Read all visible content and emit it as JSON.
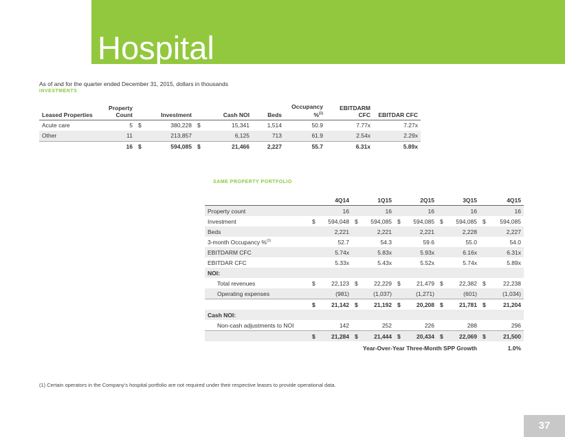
{
  "header": {
    "title": "Hospital"
  },
  "subtitle": "As of and for the quarter ended December 31, 2015, dollars in thousands",
  "investments": {
    "heading": "INVESTMENTS",
    "columns": [
      "Leased Properties",
      "Property Count",
      "Investment",
      "Cash NOI",
      "Beds",
      {
        "text": "Occupancy %",
        "note": "(1)"
      },
      "EBITDARM CFC",
      "EBITDAR CFC"
    ],
    "rows": [
      {
        "label": "Acute care",
        "values": [
          "5",
          {
            "prefix": "$",
            "text": "380,228"
          },
          {
            "prefix": "$",
            "text": "15,341"
          },
          "1,514",
          "50.9",
          "7.77x",
          "7.27x"
        ]
      },
      {
        "label": "Other",
        "values": [
          "11",
          "213,857",
          "6,125",
          "713",
          "61.9",
          "2.54x",
          "2.29x"
        ]
      },
      {
        "label": null,
        "style": "total",
        "values": [
          "16",
          {
            "prefix": "$",
            "text": "594,085"
          },
          {
            "prefix": "$",
            "text": "21,466"
          },
          "2,227",
          "55.7",
          "6.31x",
          "5.89x"
        ]
      }
    ]
  },
  "spp": {
    "heading": "SAME PROPERTY PORTFOLIO",
    "columns": [
      "4Q14",
      "1Q15",
      "2Q15",
      "3Q15",
      "4Q15"
    ],
    "rows": [
      {
        "label": "Property count",
        "values": [
          "16",
          "16",
          "16",
          "16",
          "16"
        ]
      },
      {
        "label": "Investment",
        "values": [
          {
            "prefix": "$",
            "text": "594,048"
          },
          {
            "prefix": "$",
            "text": "594,085"
          },
          {
            "prefix": "$",
            "text": "594,085"
          },
          {
            "prefix": "$",
            "text": "594,085"
          },
          {
            "prefix": "$",
            "text": "594,085"
          }
        ]
      },
      {
        "label": "Beds",
        "values": [
          "2,221",
          "2,221",
          "2,221",
          "2,228",
          "2,227"
        ]
      },
      {
        "label": "3-month Occupancy %",
        "note": "(1)",
        "values": [
          "52.7",
          "54.3",
          "59.6",
          "55.0",
          "54.0"
        ]
      },
      {
        "label": "EBITDARM CFC",
        "values": [
          "5.74x",
          "5.83x",
          "5.93x",
          "6.16x",
          "6.31x"
        ]
      },
      {
        "label": "EBITDAR CFC",
        "values": [
          "5.33x",
          "5.43x",
          "5.52x",
          "5.74x",
          "5.89x"
        ]
      },
      {
        "label": "NOI:",
        "style": "section",
        "values": []
      },
      {
        "label": "Total revenues",
        "style": "indent",
        "values": [
          {
            "prefix": "$",
            "text": "22,123"
          },
          {
            "prefix": "$",
            "text": "22,229"
          },
          {
            "prefix": "$",
            "text": "21,479"
          },
          {
            "prefix": "$",
            "text": "22,382"
          },
          {
            "prefix": "$",
            "text": "22,238"
          }
        ]
      },
      {
        "label": "Operating expenses",
        "style": "indent",
        "values": [
          "(981)",
          "(1,037)",
          "(1,271)",
          "(601)",
          "(1,034)"
        ]
      },
      {
        "label": null,
        "style": "total",
        "values": [
          {
            "prefix": "$",
            "text": "21,142"
          },
          {
            "prefix": "$",
            "text": "21,192"
          },
          {
            "prefix": "$",
            "text": "20,208"
          },
          {
            "prefix": "$",
            "text": "21,781"
          },
          {
            "prefix": "$",
            "text": "21,204"
          }
        ]
      },
      {
        "label": "Cash NOI:",
        "style": "section",
        "values": []
      },
      {
        "label": "Non-cash adjustments to NOI",
        "style": "indent",
        "values": [
          "142",
          "252",
          "226",
          "288",
          "296"
        ]
      },
      {
        "label": null,
        "style": "total",
        "values": [
          {
            "prefix": "$",
            "text": "21,284"
          },
          {
            "prefix": "$",
            "text": "21,444"
          },
          {
            "prefix": "$",
            "text": "20,434"
          },
          {
            "prefix": "$",
            "text": "22,069"
          },
          {
            "prefix": "$",
            "text": "21,500"
          }
        ]
      }
    ],
    "growth": {
      "label": "Year-Over-Year Three-Month SPP Growth",
      "value": "1.0%"
    }
  },
  "footnote": "(1)  Certain operators in the Company's hospital portfolio are not required under their respective leases to provide operational data.",
  "page_number": "37"
}
